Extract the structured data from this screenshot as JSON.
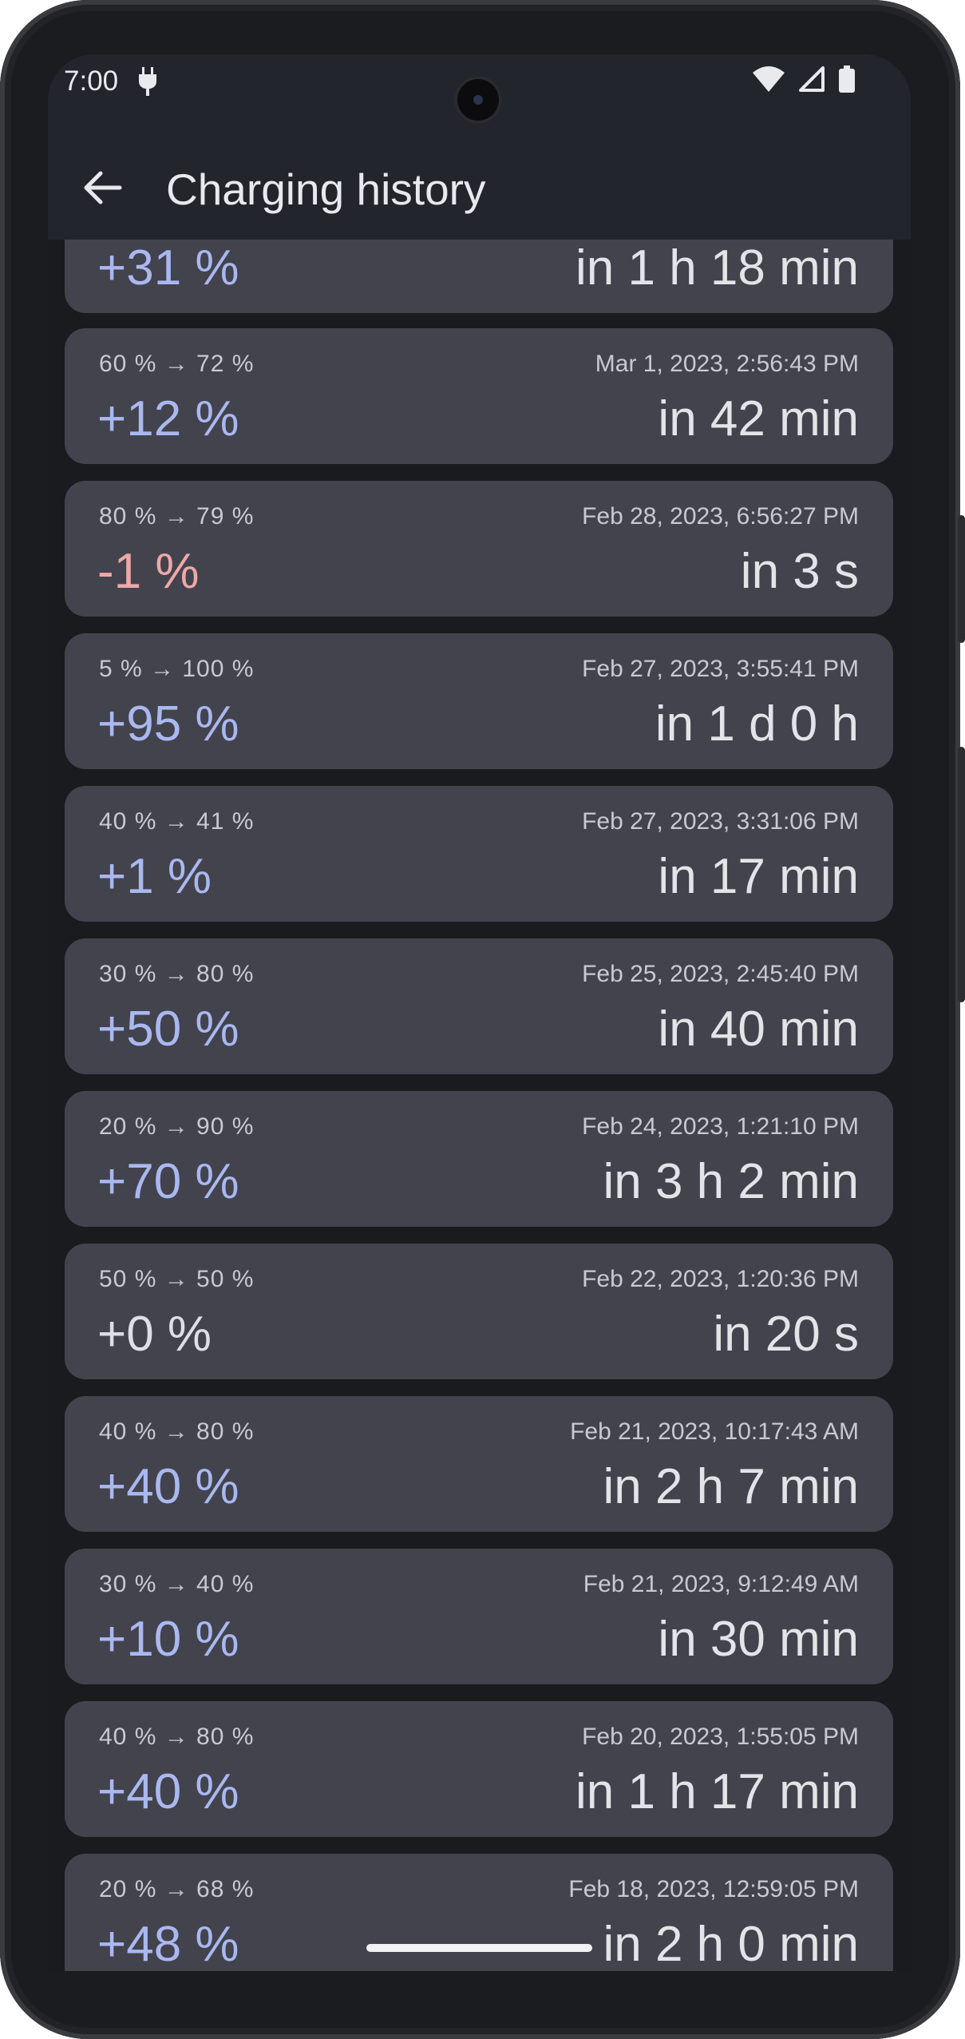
{
  "status_bar": {
    "time": "7:00",
    "icons": [
      "charging-plug-icon",
      "wifi-icon",
      "cellular-signal-icon",
      "battery-icon"
    ]
  },
  "app_bar": {
    "back_icon": "arrow-left-icon",
    "title": "Charging history"
  },
  "colors": {
    "background": "#1a1b1e",
    "card": "#43434d",
    "positive": "#aab8f0",
    "negative": "#eea8a8"
  },
  "entries": [
    {
      "range": "",
      "date": "",
      "delta": "+31 %",
      "duration": "in 1 h 18 min"
    },
    {
      "range": "60 % → 72 %",
      "date": "Mar 1, 2023, 2:56:43 PM",
      "delta": "+12 %",
      "duration": "in 42 min"
    },
    {
      "range": "80 % → 79 %",
      "date": "Feb 28, 2023, 6:56:27 PM",
      "delta": "-1 %",
      "duration": "in 3 s"
    },
    {
      "range": "5 % → 100 %",
      "date": "Feb 27, 2023, 3:55:41 PM",
      "delta": "+95 %",
      "duration": "in 1 d 0 h"
    },
    {
      "range": "40 % → 41 %",
      "date": "Feb 27, 2023, 3:31:06 PM",
      "delta": "+1 %",
      "duration": "in 17 min"
    },
    {
      "range": "30 % → 80 %",
      "date": "Feb 25, 2023, 2:45:40 PM",
      "delta": "+50 %",
      "duration": "in 40 min"
    },
    {
      "range": "20 % → 90 %",
      "date": "Feb 24, 2023, 1:21:10 PM",
      "delta": "+70 %",
      "duration": "in 3 h 2 min"
    },
    {
      "range": "50 % → 50 %",
      "date": "Feb 22, 2023, 1:20:36 PM",
      "delta": "+0 %",
      "duration": "in 20 s"
    },
    {
      "range": "40 % → 80 %",
      "date": "Feb 21, 2023, 10:17:43 AM",
      "delta": "+40 %",
      "duration": "in 2 h 7 min"
    },
    {
      "range": "30 % → 40 %",
      "date": "Feb 21, 2023, 9:12:49 AM",
      "delta": "+10 %",
      "duration": "in 30 min"
    },
    {
      "range": "40 % → 80 %",
      "date": "Feb 20, 2023, 1:55:05 PM",
      "delta": "+40 %",
      "duration": "in 1 h 17 min"
    },
    {
      "range": "20 % → 68 %",
      "date": "Feb 18, 2023, 12:59:05 PM",
      "delta": "+48 %",
      "duration": "in 2 h 0 min"
    }
  ]
}
